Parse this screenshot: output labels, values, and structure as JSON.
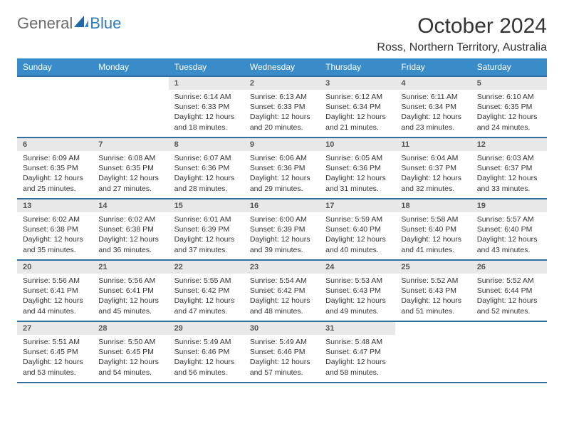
{
  "logo": {
    "word1": "General",
    "word2": "Blue"
  },
  "colors": {
    "header_bg": "#3a8cc9",
    "header_border": "#2f6fa0",
    "daynum_bg": "#e8e8e8",
    "logo_general": "#6b6b6b",
    "logo_blue": "#2f7db8"
  },
  "title": "October 2024",
  "location": "Ross, Northern Territory, Australia",
  "day_headers": [
    "Sunday",
    "Monday",
    "Tuesday",
    "Wednesday",
    "Thursday",
    "Friday",
    "Saturday"
  ],
  "weeks": [
    [
      {
        "empty": true
      },
      {
        "empty": true
      },
      {
        "num": "1",
        "sunrise": "Sunrise: 6:14 AM",
        "sunset": "Sunset: 6:33 PM",
        "daylight": "Daylight: 12 hours and 18 minutes."
      },
      {
        "num": "2",
        "sunrise": "Sunrise: 6:13 AM",
        "sunset": "Sunset: 6:33 PM",
        "daylight": "Daylight: 12 hours and 20 minutes."
      },
      {
        "num": "3",
        "sunrise": "Sunrise: 6:12 AM",
        "sunset": "Sunset: 6:34 PM",
        "daylight": "Daylight: 12 hours and 21 minutes."
      },
      {
        "num": "4",
        "sunrise": "Sunrise: 6:11 AM",
        "sunset": "Sunset: 6:34 PM",
        "daylight": "Daylight: 12 hours and 23 minutes."
      },
      {
        "num": "5",
        "sunrise": "Sunrise: 6:10 AM",
        "sunset": "Sunset: 6:35 PM",
        "daylight": "Daylight: 12 hours and 24 minutes."
      }
    ],
    [
      {
        "num": "6",
        "sunrise": "Sunrise: 6:09 AM",
        "sunset": "Sunset: 6:35 PM",
        "daylight": "Daylight: 12 hours and 25 minutes."
      },
      {
        "num": "7",
        "sunrise": "Sunrise: 6:08 AM",
        "sunset": "Sunset: 6:35 PM",
        "daylight": "Daylight: 12 hours and 27 minutes."
      },
      {
        "num": "8",
        "sunrise": "Sunrise: 6:07 AM",
        "sunset": "Sunset: 6:36 PM",
        "daylight": "Daylight: 12 hours and 28 minutes."
      },
      {
        "num": "9",
        "sunrise": "Sunrise: 6:06 AM",
        "sunset": "Sunset: 6:36 PM",
        "daylight": "Daylight: 12 hours and 29 minutes."
      },
      {
        "num": "10",
        "sunrise": "Sunrise: 6:05 AM",
        "sunset": "Sunset: 6:36 PM",
        "daylight": "Daylight: 12 hours and 31 minutes."
      },
      {
        "num": "11",
        "sunrise": "Sunrise: 6:04 AM",
        "sunset": "Sunset: 6:37 PM",
        "daylight": "Daylight: 12 hours and 32 minutes."
      },
      {
        "num": "12",
        "sunrise": "Sunrise: 6:03 AM",
        "sunset": "Sunset: 6:37 PM",
        "daylight": "Daylight: 12 hours and 33 minutes."
      }
    ],
    [
      {
        "num": "13",
        "sunrise": "Sunrise: 6:02 AM",
        "sunset": "Sunset: 6:38 PM",
        "daylight": "Daylight: 12 hours and 35 minutes."
      },
      {
        "num": "14",
        "sunrise": "Sunrise: 6:02 AM",
        "sunset": "Sunset: 6:38 PM",
        "daylight": "Daylight: 12 hours and 36 minutes."
      },
      {
        "num": "15",
        "sunrise": "Sunrise: 6:01 AM",
        "sunset": "Sunset: 6:39 PM",
        "daylight": "Daylight: 12 hours and 37 minutes."
      },
      {
        "num": "16",
        "sunrise": "Sunrise: 6:00 AM",
        "sunset": "Sunset: 6:39 PM",
        "daylight": "Daylight: 12 hours and 39 minutes."
      },
      {
        "num": "17",
        "sunrise": "Sunrise: 5:59 AM",
        "sunset": "Sunset: 6:40 PM",
        "daylight": "Daylight: 12 hours and 40 minutes."
      },
      {
        "num": "18",
        "sunrise": "Sunrise: 5:58 AM",
        "sunset": "Sunset: 6:40 PM",
        "daylight": "Daylight: 12 hours and 41 minutes."
      },
      {
        "num": "19",
        "sunrise": "Sunrise: 5:57 AM",
        "sunset": "Sunset: 6:40 PM",
        "daylight": "Daylight: 12 hours and 43 minutes."
      }
    ],
    [
      {
        "num": "20",
        "sunrise": "Sunrise: 5:56 AM",
        "sunset": "Sunset: 6:41 PM",
        "daylight": "Daylight: 12 hours and 44 minutes."
      },
      {
        "num": "21",
        "sunrise": "Sunrise: 5:56 AM",
        "sunset": "Sunset: 6:41 PM",
        "daylight": "Daylight: 12 hours and 45 minutes."
      },
      {
        "num": "22",
        "sunrise": "Sunrise: 5:55 AM",
        "sunset": "Sunset: 6:42 PM",
        "daylight": "Daylight: 12 hours and 47 minutes."
      },
      {
        "num": "23",
        "sunrise": "Sunrise: 5:54 AM",
        "sunset": "Sunset: 6:42 PM",
        "daylight": "Daylight: 12 hours and 48 minutes."
      },
      {
        "num": "24",
        "sunrise": "Sunrise: 5:53 AM",
        "sunset": "Sunset: 6:43 PM",
        "daylight": "Daylight: 12 hours and 49 minutes."
      },
      {
        "num": "25",
        "sunrise": "Sunrise: 5:52 AM",
        "sunset": "Sunset: 6:43 PM",
        "daylight": "Daylight: 12 hours and 51 minutes."
      },
      {
        "num": "26",
        "sunrise": "Sunrise: 5:52 AM",
        "sunset": "Sunset: 6:44 PM",
        "daylight": "Daylight: 12 hours and 52 minutes."
      }
    ],
    [
      {
        "num": "27",
        "sunrise": "Sunrise: 5:51 AM",
        "sunset": "Sunset: 6:45 PM",
        "daylight": "Daylight: 12 hours and 53 minutes."
      },
      {
        "num": "28",
        "sunrise": "Sunrise: 5:50 AM",
        "sunset": "Sunset: 6:45 PM",
        "daylight": "Daylight: 12 hours and 54 minutes."
      },
      {
        "num": "29",
        "sunrise": "Sunrise: 5:49 AM",
        "sunset": "Sunset: 6:46 PM",
        "daylight": "Daylight: 12 hours and 56 minutes."
      },
      {
        "num": "30",
        "sunrise": "Sunrise: 5:49 AM",
        "sunset": "Sunset: 6:46 PM",
        "daylight": "Daylight: 12 hours and 57 minutes."
      },
      {
        "num": "31",
        "sunrise": "Sunrise: 5:48 AM",
        "sunset": "Sunset: 6:47 PM",
        "daylight": "Daylight: 12 hours and 58 minutes."
      },
      {
        "empty": true
      },
      {
        "empty": true
      }
    ]
  ]
}
